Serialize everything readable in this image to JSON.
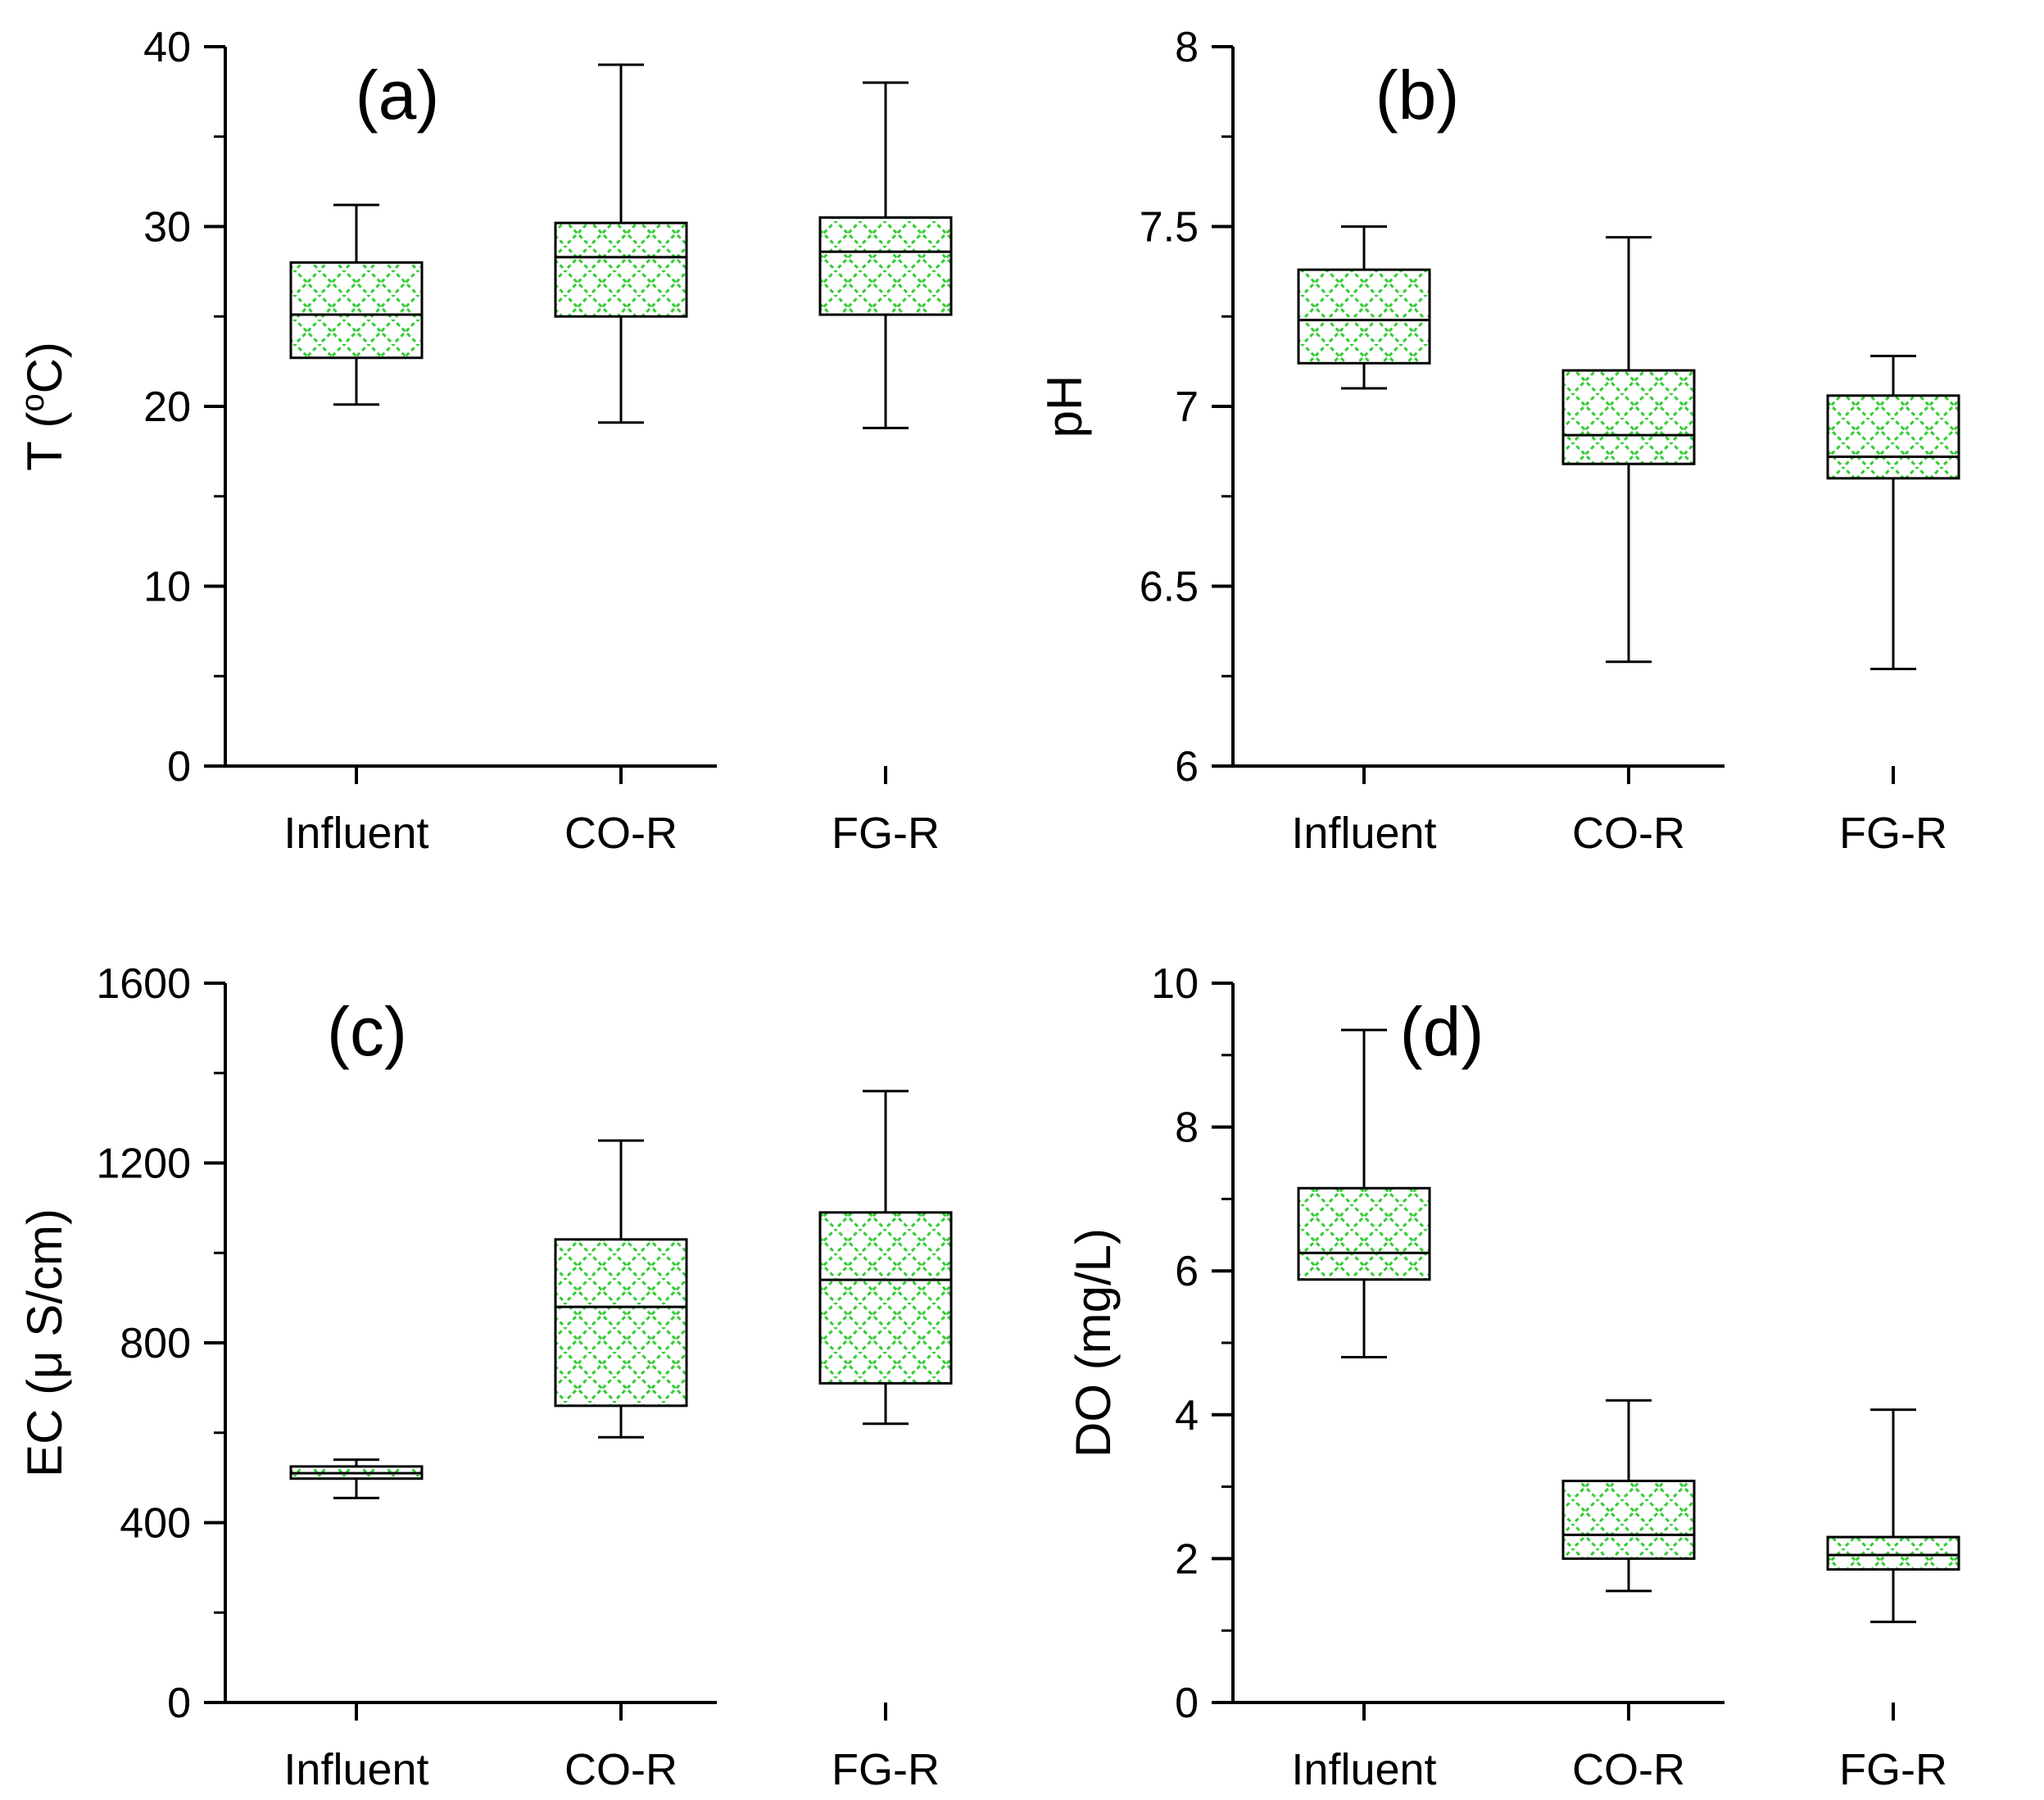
{
  "chart_data": [
    {
      "type": "box",
      "panel_label": "(a)",
      "ylabel": "T (",
      "ylabel_sup": "o",
      "ylabel_tail": "C)",
      "ylim": [
        0,
        40
      ],
      "ticks": [
        0,
        10,
        20,
        30,
        40
      ],
      "tick_labels": [
        "0",
        "10",
        "20",
        "30",
        "40"
      ],
      "categories": [
        "Influent",
        "CO-R",
        "FG-R"
      ],
      "boxes": [
        {
          "min": 20.1,
          "q1": 22.7,
          "median": 25.1,
          "q3": 28.0,
          "max": 31.2
        },
        {
          "min": 19.1,
          "q1": 25.0,
          "median": 28.3,
          "q3": 30.2,
          "max": 39.0
        },
        {
          "min": 18.8,
          "q1": 25.1,
          "median": 28.6,
          "q3": 30.5,
          "max": 38.0
        }
      ]
    },
    {
      "type": "box",
      "panel_label": "(b)",
      "ylabel": "pH",
      "ylabel_sup": "",
      "ylabel_tail": "",
      "ylim": [
        6,
        8
      ],
      "ticks": [
        6,
        6.5,
        7,
        7.5,
        8
      ],
      "tick_labels": [
        "6",
        "6.5",
        "7",
        "7.5",
        "8"
      ],
      "categories": [
        "Influent",
        "CO-R",
        "FG-R"
      ],
      "boxes": [
        {
          "min": 7.05,
          "q1": 7.12,
          "median": 7.24,
          "q3": 7.38,
          "max": 7.5
        },
        {
          "min": 6.29,
          "q1": 6.84,
          "median": 6.92,
          "q3": 7.1,
          "max": 7.47
        },
        {
          "min": 6.27,
          "q1": 6.8,
          "median": 6.86,
          "q3": 7.03,
          "max": 7.14
        }
      ]
    },
    {
      "type": "box",
      "panel_label": "(c)",
      "ylabel": "EC (μ S/cm)",
      "ylabel_sup": "",
      "ylabel_tail": "",
      "ylim": [
        0,
        1600
      ],
      "ticks": [
        0,
        400,
        800,
        1200,
        1600
      ],
      "tick_labels": [
        "0",
        "400",
        "800",
        "1200",
        "1600"
      ],
      "categories": [
        "Influent",
        "CO-R",
        "FG-R"
      ],
      "boxes": [
        {
          "min": 455,
          "q1": 498,
          "median": 510,
          "q3": 525,
          "max": 540
        },
        {
          "min": 590,
          "q1": 660,
          "median": 880,
          "q3": 1030,
          "max": 1250
        },
        {
          "min": 620,
          "q1": 710,
          "median": 940,
          "q3": 1090,
          "max": 1360
        }
      ]
    },
    {
      "type": "box",
      "panel_label": "(d)",
      "ylabel": "DO (mg/L)",
      "ylabel_sup": "",
      "ylabel_tail": "",
      "ylim": [
        0,
        10
      ],
      "ticks": [
        0,
        2,
        4,
        6,
        8,
        10
      ],
      "tick_labels": [
        "0",
        "2",
        "4",
        "6",
        "8",
        "10"
      ],
      "categories": [
        "Influent",
        "CO-R",
        "FG-R"
      ],
      "boxes": [
        {
          "min": 4.8,
          "q1": 5.88,
          "median": 6.25,
          "q3": 7.15,
          "max": 9.35
        },
        {
          "min": 1.55,
          "q1": 2.0,
          "median": 2.33,
          "q3": 3.08,
          "max": 4.2
        },
        {
          "min": 1.12,
          "q1": 1.85,
          "median": 2.05,
          "q3": 2.3,
          "max": 4.07
        }
      ]
    }
  ],
  "colors": {
    "box_fill": "#ffffff",
    "box_hatch": "#33cc33",
    "line": "#000000"
  }
}
